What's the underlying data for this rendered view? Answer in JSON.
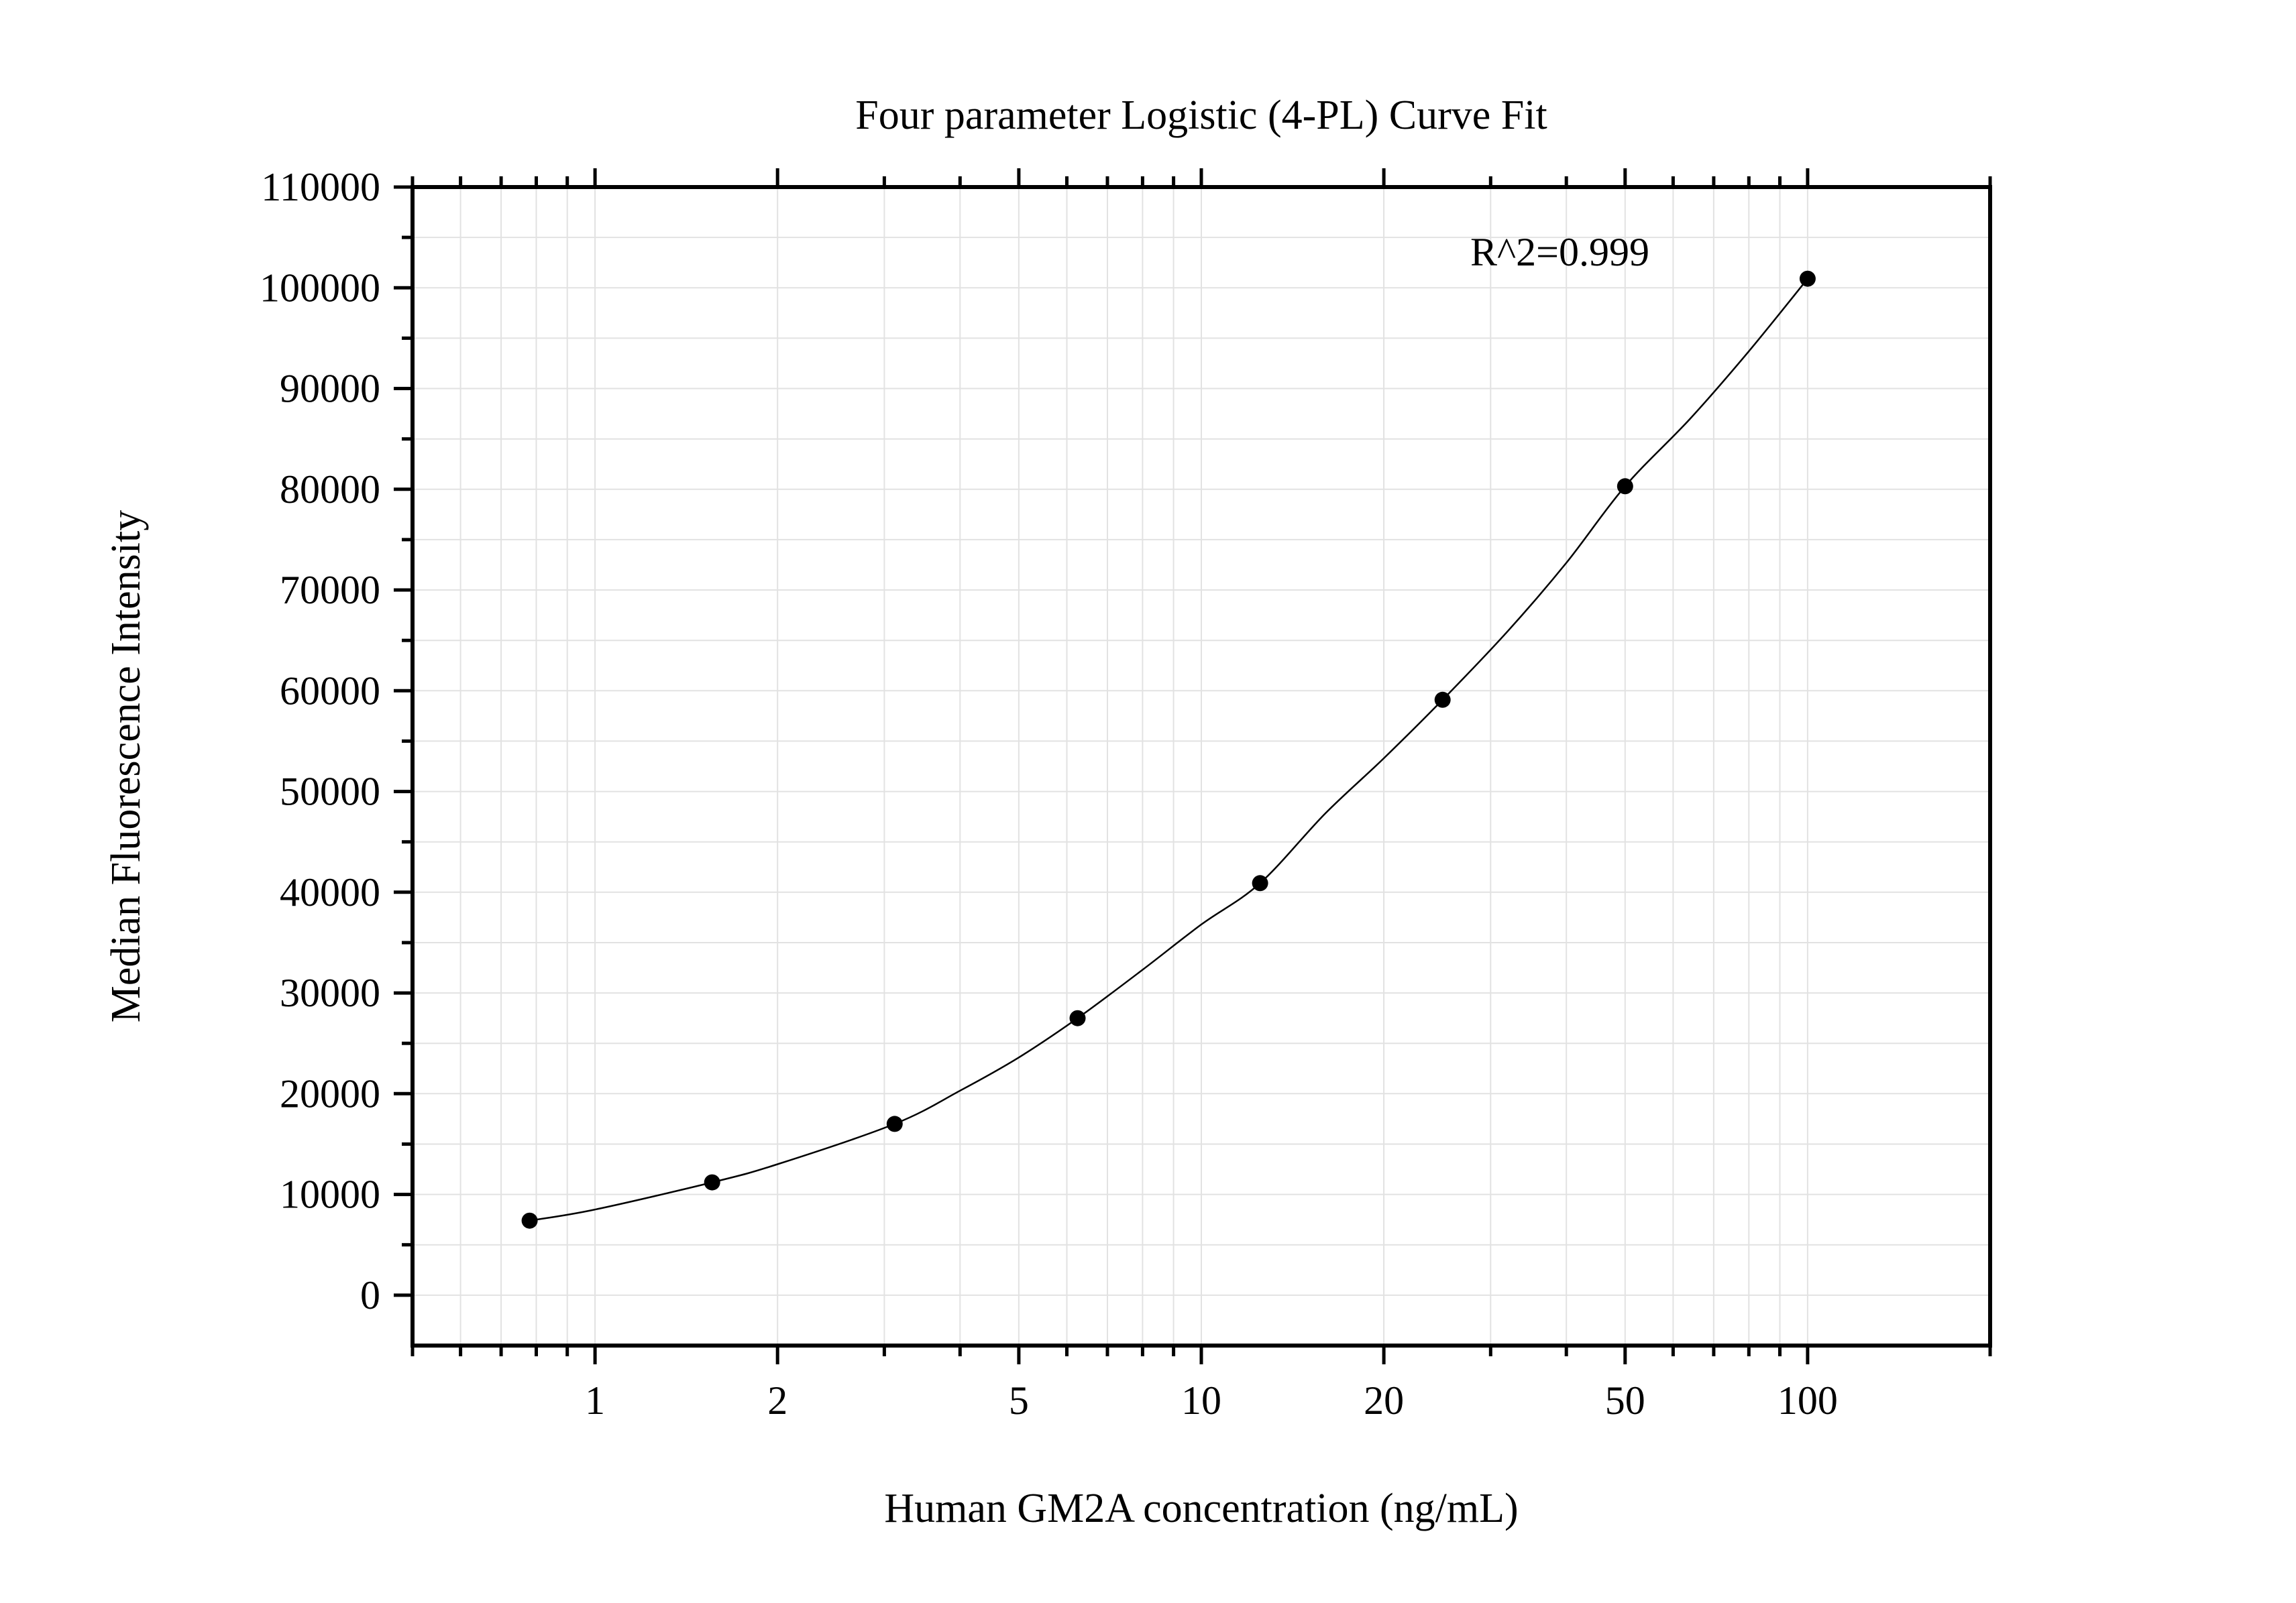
{
  "chart_data": {
    "type": "scatter",
    "title": "Four parameter Logistic (4-PL) Curve Fit",
    "xlabel": "Human GM2A concentration (ng/mL)",
    "ylabel": "Median Fluorescence Intensity",
    "x_scale": "log",
    "xlim": [
      0.5,
      200
    ],
    "ylim": [
      -5000,
      110000
    ],
    "x_ticks": [
      1,
      2,
      5,
      10,
      20,
      50,
      100
    ],
    "x_tick_labels": [
      "1",
      "2",
      "5",
      "10",
      "20",
      "50",
      "100"
    ],
    "y_ticks": [
      0,
      10000,
      20000,
      30000,
      40000,
      50000,
      60000,
      70000,
      80000,
      90000,
      100000,
      110000
    ],
    "y_tick_labels": [
      "0",
      "10000",
      "20000",
      "30000",
      "40000",
      "50000",
      "60000",
      "70000",
      "80000",
      "90000",
      "100000",
      "110000"
    ],
    "grid": true,
    "annotation": "R^2=0.999",
    "series": [
      {
        "x": [
          0.78,
          1.56,
          3.12,
          6.25,
          12.5,
          25,
          50,
          100
        ],
        "y": [
          7400,
          11200,
          17000,
          27500,
          40900,
          59100,
          80300,
          100900
        ]
      }
    ],
    "fit_curve": {
      "x": [
        0.78,
        1.0,
        1.56,
        2.0,
        3.12,
        4.0,
        5.0,
        6.25,
        8.0,
        10.0,
        12.5,
        16.0,
        20.0,
        25.0,
        32.0,
        40.0,
        50.0,
        64.0,
        80.0,
        100.0
      ],
      "y": [
        7400,
        8500,
        11200,
        13000,
        17000,
        20300,
        23600,
        27500,
        32300,
        36800,
        40900,
        47800,
        53300,
        59100,
        65900,
        72700,
        80300,
        87000,
        93700,
        100900
      ]
    }
  }
}
